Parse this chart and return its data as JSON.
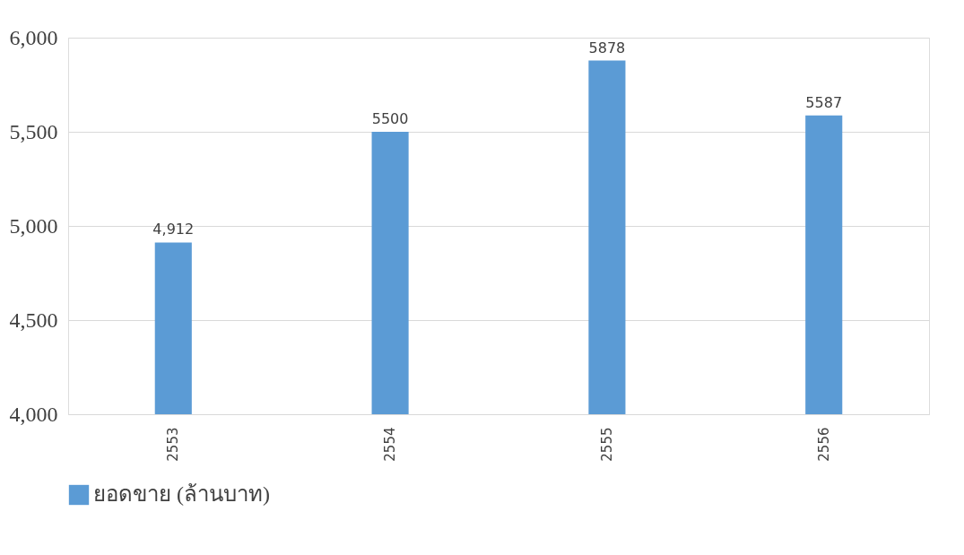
{
  "chart_data": {
    "type": "bar",
    "categories": [
      "2553",
      "2554",
      "2555",
      "2556"
    ],
    "series": [
      {
        "name": "ยอดขาย (ล้านบาท)",
        "color": "#5b9bd5",
        "values": [
          4912,
          5500,
          5878,
          5587
        ],
        "value_labels": [
          "4,912",
          "5500",
          "5878",
          "5587"
        ]
      }
    ],
    "ylim": [
      4000,
      6000
    ],
    "yticks": [
      {
        "value": 4000,
        "label": "4,000"
      },
      {
        "value": 4500,
        "label": "4,500"
      },
      {
        "value": 5000,
        "label": "5,000"
      },
      {
        "value": 5500,
        "label": "5,500"
      },
      {
        "value": 6000,
        "label": "6,000"
      }
    ],
    "grid": "y",
    "legend": "bottom"
  }
}
